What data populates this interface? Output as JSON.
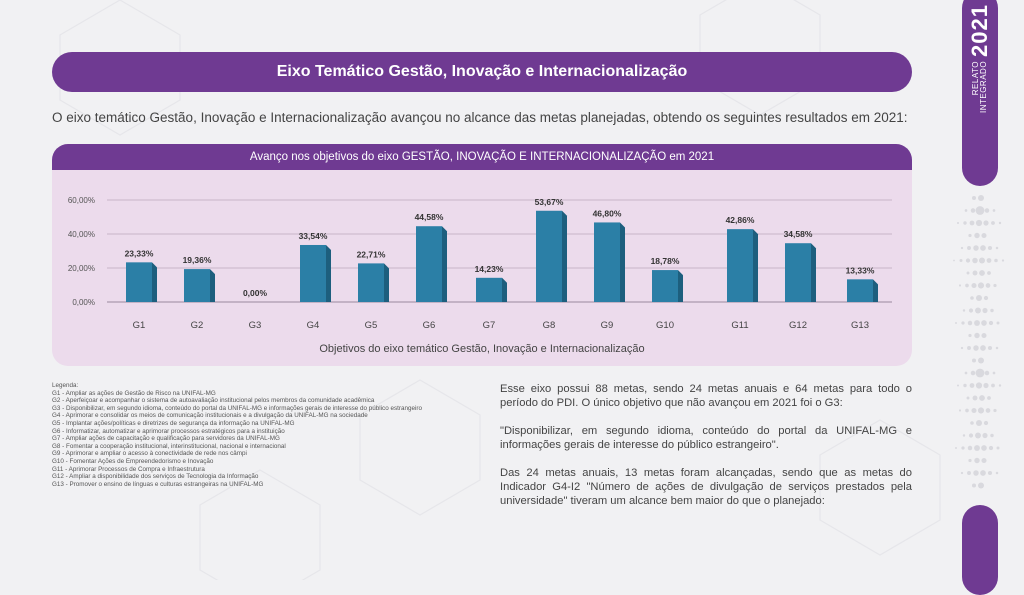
{
  "header": {
    "title": "Eixo Temático Gestão, Inovação e Internacionalização"
  },
  "intro": "O eixo temático Gestão, Inovação e Internacionalização avançou no alcance das metas planejadas, obtendo os seguintes resultados em 2021:",
  "chart_panel": {
    "title": "Avanço nos objetivos do eixo GESTÃO, INOVAÇÃO E INTERNACIONALIZAÇÃO em 2021"
  },
  "chart_data": {
    "type": "bar",
    "title": "Avanço nos objetivos do eixo GESTÃO, INOVAÇÃO E INTERNACIONALIZAÇÃO em 2021",
    "xlabel": "Objetivos do eixo temático Gestão, Inovação e Internacionalização",
    "ylabel": "",
    "categories": [
      "G1",
      "G2",
      "G3",
      "G4",
      "G5",
      "G6",
      "G7",
      "G8",
      "G9",
      "G10",
      "G11",
      "G12",
      "G13"
    ],
    "values": [
      23.33,
      19.36,
      0.0,
      33.54,
      22.71,
      44.58,
      14.23,
      53.67,
      46.8,
      18.78,
      42.86,
      34.58,
      13.33
    ],
    "value_labels": [
      "23,33%",
      "19,36%",
      "0,00%",
      "33,54%",
      "22,71%",
      "44,58%",
      "14,23%",
      "53,67%",
      "46,80%",
      "18,78%",
      "42,86%",
      "34,58%",
      "13,33%"
    ],
    "ylim": [
      0,
      60
    ],
    "yticks": [
      0,
      20,
      40,
      60
    ],
    "ytick_labels": [
      "0,00%",
      "20,00%",
      "40,00%",
      "60,00%"
    ],
    "grid": true,
    "bar_color": "#2b7fa6"
  },
  "legend": {
    "title": "Legenda:",
    "items": [
      "G1 - Ampliar as ações de Gestão de Risco na UNIFAL-MG",
      "G2 - Aperfeiçoar e acompanhar o sistema de autoavaliação institucional pelos membros da comunidade acadêmica",
      "G3 - Disponibilizar, em segundo idioma, conteúdo do portal da UNIFAL-MG e informações gerais de interesse do público estrangeiro",
      "G4 - Aprimorar e consolidar os meios de comunicação institucionais e a divulgação da UNIFAL-MG na sociedade",
      "G5 -  Implantar ações/políticas e diretrizes de segurança da informação na UNIFAL-MG",
      "G6 - Informatizar, automatizar e aprimorar processos estratégicos para a instituição",
      "G7 - Ampliar ações de capacitação e qualificação para servidores da UNIFAL-MG",
      "G8 - Fomentar a cooperação institucional, interinstitucional, nacional e internacional",
      "G9 - Aprimorar e ampliar o acesso à conectividade de rede nos câmpi",
      "G10 - Fomentar Ações de Empreendedorismo e Inovação",
      "G11 - Aprimorar Processos de Compra e Infraestrutura",
      "G12 - Ampliar a disponibilidade dos serviços de Tecnologia da Informação",
      "G13 - Promover o ensino de línguas e culturas estrangeiras na UNIFAL-MG"
    ]
  },
  "body": {
    "p1": "Esse eixo possui 88 metas, sendo 24 metas anuais e 64 metas para todo o período do PDI. O único objetivo que não avançou em 2021 foi o G3:",
    "p2": "\"Disponibilizar, em segundo idioma, conteúdo do portal da UNIFAL-MG e informações gerais de interesse do público estrangeiro\".",
    "p3": "Das 24 metas anuais, 13 metas foram alcançadas, sendo que as metas do Indicador G4-I2 \"Número de ações de divulgação de serviços prestados pela universidade\" tiveram um alcance bem maior do que o planejado:"
  },
  "side": {
    "line1": "RELATO",
    "line2": "INTEGRADO",
    "year": "2021"
  },
  "colors": {
    "purple": "#6f3a92",
    "panel": "#ecdbec",
    "bar": "#2b7fa6"
  }
}
